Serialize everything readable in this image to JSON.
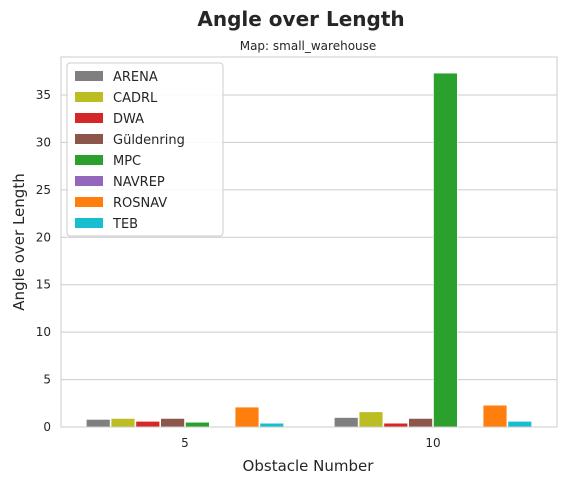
{
  "chart_data": {
    "type": "bar",
    "title": "Angle over Length",
    "subtitle": "Map: small_warehouse",
    "xlabel": "Obstacle Number",
    "ylabel": "Angle over Length",
    "categories": [
      "5",
      "10"
    ],
    "ylim": [
      0,
      39
    ],
    "yticks": [
      0,
      5,
      10,
      15,
      20,
      25,
      30,
      35
    ],
    "grid": true,
    "legend_position": "top-left",
    "series": [
      {
        "name": "ARENA",
        "color": "#7f7f7f",
        "values": [
          0.8,
          1.0
        ]
      },
      {
        "name": "CADRL",
        "color": "#bcbd22",
        "values": [
          0.9,
          1.6
        ]
      },
      {
        "name": "DWA",
        "color": "#d62728",
        "values": [
          0.6,
          0.4
        ]
      },
      {
        "name": "Güldenring",
        "color": "#8c564b",
        "values": [
          0.9,
          0.9
        ]
      },
      {
        "name": "MPC",
        "color": "#2ca02c",
        "values": [
          0.5,
          37.3
        ]
      },
      {
        "name": "NAVREP",
        "color": "#9467bd",
        "values": [
          0.0,
          0.0
        ]
      },
      {
        "name": "ROSNAV",
        "color": "#ff7f0e",
        "values": [
          2.1,
          2.3
        ]
      },
      {
        "name": "TEB",
        "color": "#17becf",
        "values": [
          0.4,
          0.6
        ]
      }
    ]
  }
}
